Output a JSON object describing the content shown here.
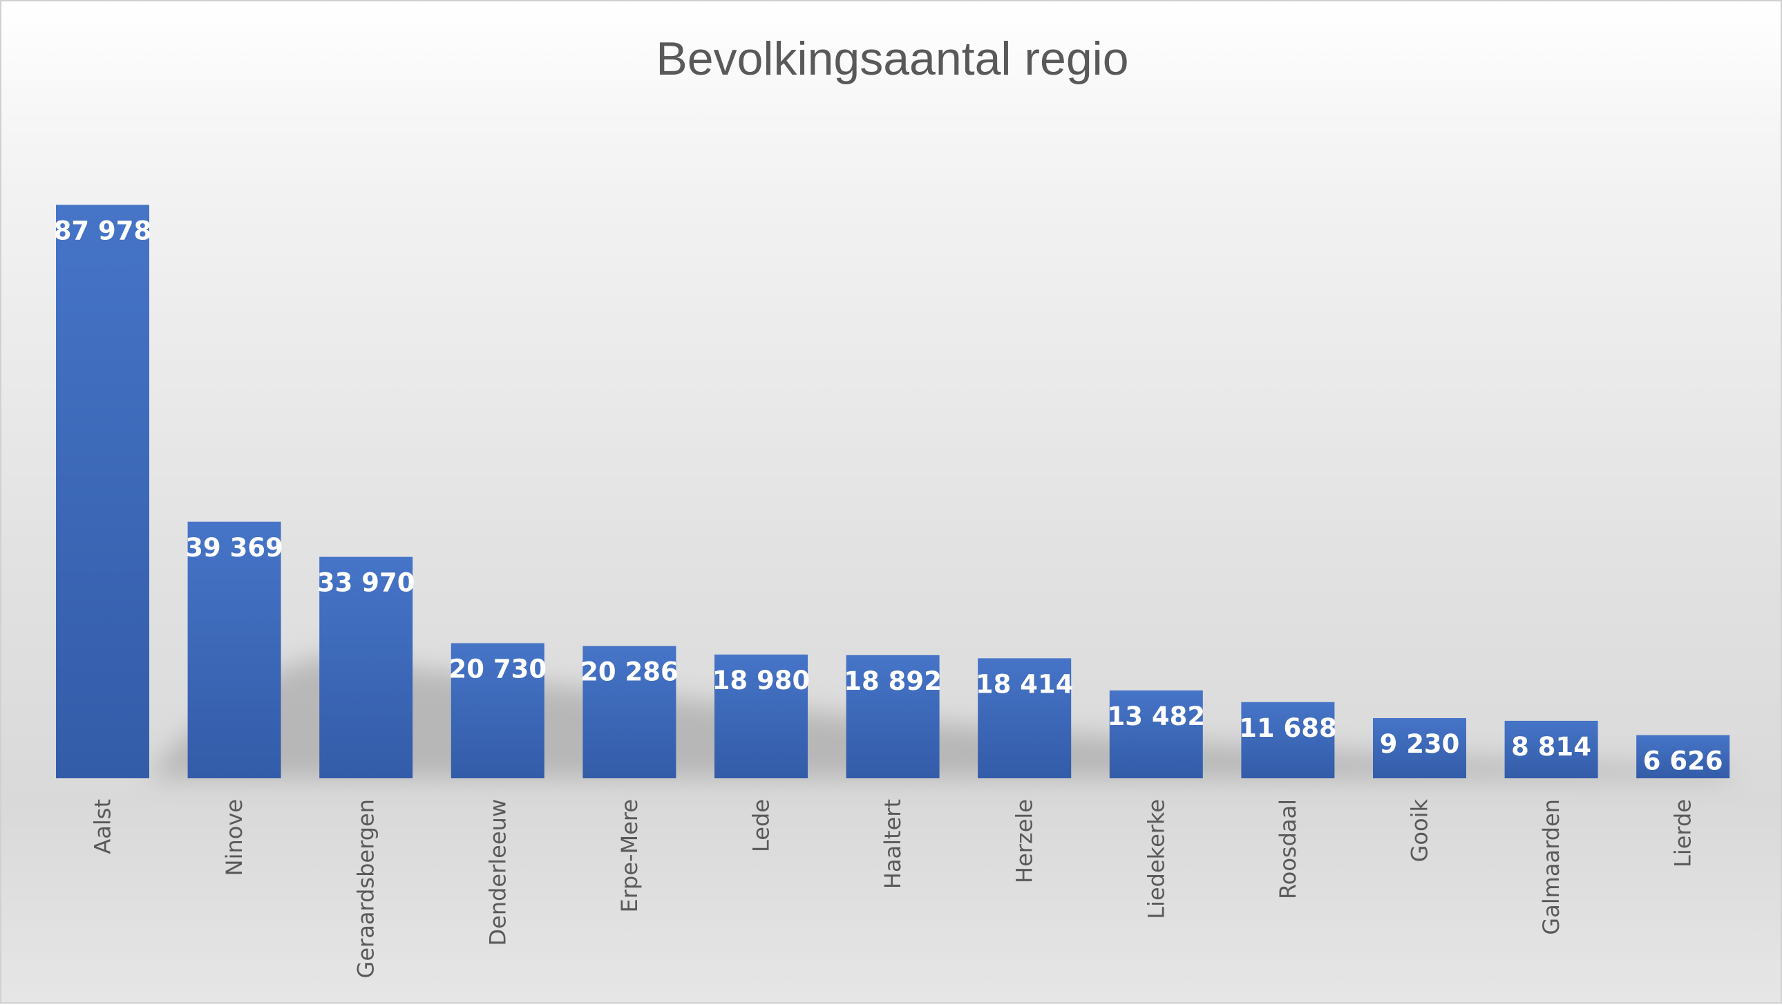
{
  "chart_data": {
    "type": "bar",
    "title": "Bevolkingsaantal regio",
    "categories": [
      "Aalst",
      "Ninove",
      "Geraardsbergen",
      "Denderleeuw",
      "Erpe-Mere",
      "Lede",
      "Haaltert",
      "Herzele",
      "Liedekerke",
      "Roosdaal",
      "Gooik",
      "Galmaarden",
      "Lierde"
    ],
    "values": [
      87978,
      39369,
      33970,
      20730,
      20286,
      18980,
      18892,
      18414,
      13482,
      11688,
      9230,
      8814,
      6626
    ],
    "data_labels": [
      "87 978",
      "39 369",
      "33 970",
      "20 730",
      "20 286",
      "18 980",
      "18 892",
      "18 414",
      "13 482",
      "11 688",
      "9 230",
      "8 814",
      "6 626"
    ],
    "xlabel": "",
    "ylabel": "",
    "ylim": [
      0,
      100000
    ],
    "grid": false,
    "legend": "none",
    "colors": {
      "bar_top": "#4472c4",
      "bar_bottom": "#335aa6",
      "label": "#ffffff",
      "category_text": "#595959",
      "title": "#595959"
    }
  }
}
